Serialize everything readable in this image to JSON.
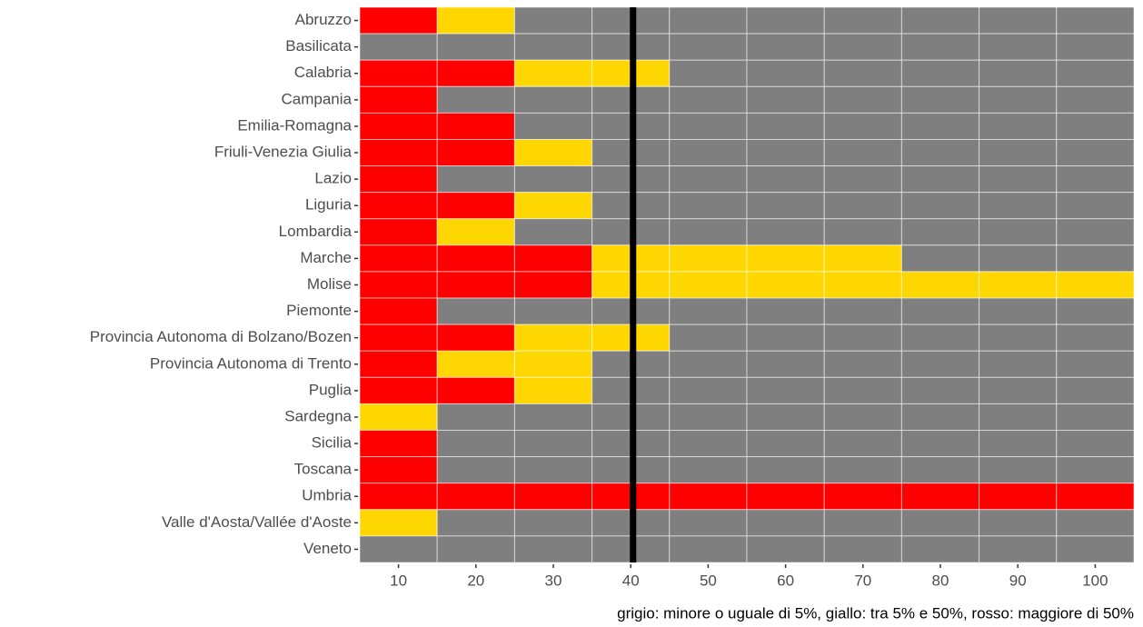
{
  "chart_data": {
    "type": "heatmap",
    "categories": [
      "Abruzzo",
      "Basilicata",
      "Calabria",
      "Campania",
      "Emilia-Romagna",
      "Friuli-Venezia Giulia",
      "Lazio",
      "Liguria",
      "Lombardia",
      "Marche",
      "Molise",
      "Piemonte",
      "Provincia Autonoma di Bolzano/Bozen",
      "Provincia Autonoma di Trento",
      "Puglia",
      "Sardegna",
      "Sicilia",
      "Toscana",
      "Umbria",
      "Valle d'Aosta/Vallée d'Aoste",
      "Veneto"
    ],
    "x": [
      10,
      20,
      30,
      40,
      50,
      60,
      70,
      80,
      90,
      100
    ],
    "levels": [
      {
        "name": "grigio",
        "color": "#7f7f7f"
      },
      {
        "name": "giallo",
        "color": "#ffd700"
      },
      {
        "name": "rosso",
        "color": "#ff0000"
      }
    ],
    "values": [
      [
        "rosso",
        "giallo",
        "grigio",
        "grigio",
        "grigio",
        "grigio",
        "grigio",
        "grigio",
        "grigio",
        "grigio"
      ],
      [
        "grigio",
        "grigio",
        "grigio",
        "grigio",
        "grigio",
        "grigio",
        "grigio",
        "grigio",
        "grigio",
        "grigio"
      ],
      [
        "rosso",
        "rosso",
        "giallo",
        "giallo",
        "grigio",
        "grigio",
        "grigio",
        "grigio",
        "grigio",
        "grigio"
      ],
      [
        "rosso",
        "grigio",
        "grigio",
        "grigio",
        "grigio",
        "grigio",
        "grigio",
        "grigio",
        "grigio",
        "grigio"
      ],
      [
        "rosso",
        "rosso",
        "grigio",
        "grigio",
        "grigio",
        "grigio",
        "grigio",
        "grigio",
        "grigio",
        "grigio"
      ],
      [
        "rosso",
        "rosso",
        "giallo",
        "grigio",
        "grigio",
        "grigio",
        "grigio",
        "grigio",
        "grigio",
        "grigio"
      ],
      [
        "rosso",
        "grigio",
        "grigio",
        "grigio",
        "grigio",
        "grigio",
        "grigio",
        "grigio",
        "grigio",
        "grigio"
      ],
      [
        "rosso",
        "rosso",
        "giallo",
        "grigio",
        "grigio",
        "grigio",
        "grigio",
        "grigio",
        "grigio",
        "grigio"
      ],
      [
        "rosso",
        "giallo",
        "grigio",
        "grigio",
        "grigio",
        "grigio",
        "grigio",
        "grigio",
        "grigio",
        "grigio"
      ],
      [
        "rosso",
        "rosso",
        "rosso",
        "giallo",
        "giallo",
        "giallo",
        "giallo",
        "grigio",
        "grigio",
        "grigio"
      ],
      [
        "rosso",
        "rosso",
        "rosso",
        "giallo",
        "giallo",
        "giallo",
        "giallo",
        "giallo",
        "giallo",
        "giallo"
      ],
      [
        "rosso",
        "grigio",
        "grigio",
        "grigio",
        "grigio",
        "grigio",
        "grigio",
        "grigio",
        "grigio",
        "grigio"
      ],
      [
        "rosso",
        "rosso",
        "giallo",
        "giallo",
        "grigio",
        "grigio",
        "grigio",
        "grigio",
        "grigio",
        "grigio"
      ],
      [
        "rosso",
        "giallo",
        "giallo",
        "grigio",
        "grigio",
        "grigio",
        "grigio",
        "grigio",
        "grigio",
        "grigio"
      ],
      [
        "rosso",
        "rosso",
        "giallo",
        "grigio",
        "grigio",
        "grigio",
        "grigio",
        "grigio",
        "grigio",
        "grigio"
      ],
      [
        "giallo",
        "grigio",
        "grigio",
        "grigio",
        "grigio",
        "grigio",
        "grigio",
        "grigio",
        "grigio",
        "grigio"
      ],
      [
        "rosso",
        "grigio",
        "grigio",
        "grigio",
        "grigio",
        "grigio",
        "grigio",
        "grigio",
        "grigio",
        "grigio"
      ],
      [
        "rosso",
        "grigio",
        "grigio",
        "grigio",
        "grigio",
        "grigio",
        "grigio",
        "grigio",
        "grigio",
        "grigio"
      ],
      [
        "rosso",
        "rosso",
        "rosso",
        "rosso",
        "rosso",
        "rosso",
        "rosso",
        "rosso",
        "rosso",
        "rosso"
      ],
      [
        "giallo",
        "grigio",
        "grigio",
        "grigio",
        "grigio",
        "grigio",
        "grigio",
        "grigio",
        "grigio",
        "grigio"
      ],
      [
        "grigio",
        "grigio",
        "grigio",
        "grigio",
        "grigio",
        "grigio",
        "grigio",
        "grigio",
        "grigio",
        "grigio"
      ]
    ],
    "tile_width": 10,
    "xlim": [
      5,
      105
    ],
    "xticks": [
      10,
      20,
      30,
      40,
      50,
      60,
      70,
      80,
      90,
      100
    ],
    "vline": 40.3,
    "vline_color": "#000000",
    "caption": "grigio: minore o uguale di 5%, giallo: tra 5% e 50%, rosso: maggiore di 50%"
  }
}
